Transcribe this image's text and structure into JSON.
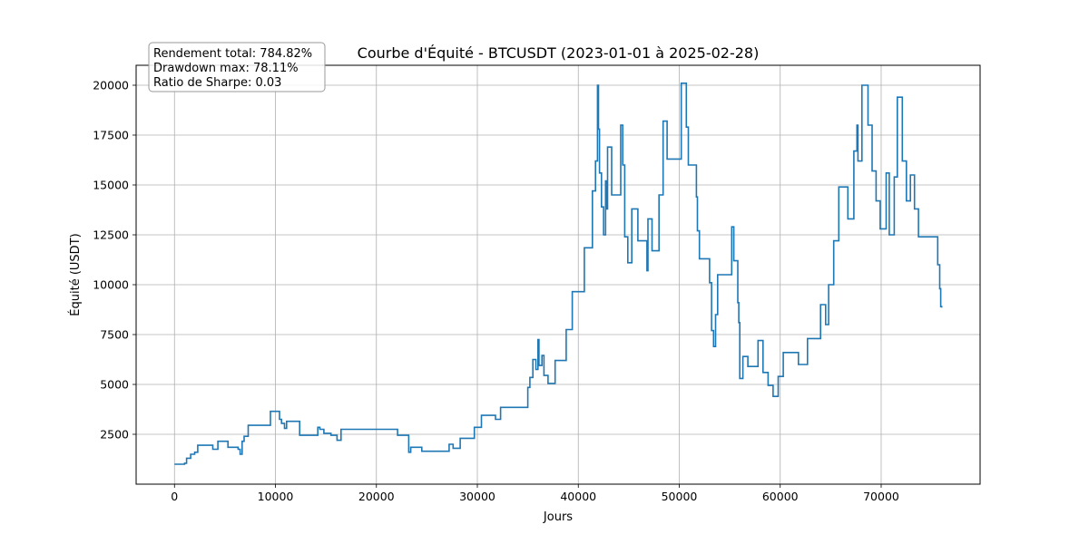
{
  "chart_data": {
    "type": "line",
    "title": "Courbe d'Équité - BTCUSDT (2023-01-01 à 2025-02-28)",
    "xlabel": "Jours",
    "ylabel": "Équité (USDT)",
    "xlim": [
      -3800,
      79800
    ],
    "ylim": [
      0,
      21000
    ],
    "xticks": [
      0,
      10000,
      20000,
      30000,
      40000,
      50000,
      60000,
      70000
    ],
    "yticks": [
      2500,
      5000,
      7500,
      10000,
      12500,
      15000,
      17500,
      20000
    ],
    "grid": true,
    "line_color": "#1f77b4",
    "stats_box": {
      "position": "top-left",
      "lines": [
        "Rendement total: 784.82%",
        "Drawdown max: 78.11%",
        "Ratio de Sharpe: 0.03"
      ]
    },
    "series": [
      {
        "step": true,
        "x": [
          0,
          1000,
          1200,
          1600,
          2000,
          2300,
          3800,
          4300,
          5300,
          6300,
          6500,
          6700,
          6900,
          7300,
          8300,
          9500,
          10400,
          10600,
          10900,
          11100,
          12400,
          14200,
          14400,
          14800,
          15500,
          16100,
          16500,
          20000,
          22100,
          23200,
          23400,
          24500,
          26500,
          27200,
          27600,
          28300,
          29700,
          30400,
          31800,
          32300,
          35000,
          35200,
          35500,
          35800,
          36000,
          36100,
          36400,
          36600,
          37000,
          37700,
          38800,
          39400,
          40600,
          41400,
          41700,
          41900,
          42000,
          42100,
          42300,
          42500,
          42700,
          42800,
          42900,
          43300,
          44200,
          44400,
          44600,
          44900,
          45300,
          45500,
          45900,
          46800,
          46900,
          47300,
          48000,
          48400,
          48800,
          49200,
          50200,
          50700,
          50900,
          51700,
          51800,
          52000,
          52500,
          53000,
          53200,
          53400,
          53600,
          53800,
          54400,
          55200,
          55400,
          55800,
          55900,
          56000,
          56300,
          56800,
          57800,
          58300,
          58800,
          59300,
          59800,
          60300,
          61800,
          62700,
          64000,
          64500,
          64800,
          65300,
          65800,
          66700,
          67300,
          67600,
          67700,
          68100,
          68700,
          69100,
          69500,
          69900,
          70500,
          70800,
          71300,
          71600,
          72100,
          72500,
          72900,
          73300,
          73700,
          75600,
          75800,
          75900,
          76000
        ],
        "values": [
          1000,
          1050,
          1300,
          1500,
          1600,
          1950,
          1750,
          2150,
          1850,
          1750,
          1500,
          2150,
          2400,
          2950,
          2950,
          3650,
          3250,
          3050,
          2800,
          3150,
          2450,
          2850,
          2750,
          2550,
          2450,
          2200,
          2750,
          2750,
          2450,
          1600,
          1850,
          1650,
          1650,
          2000,
          1800,
          2300,
          2850,
          3450,
          3250,
          3850,
          4850,
          5350,
          6250,
          5750,
          7250,
          5950,
          6450,
          5450,
          5050,
          6200,
          7750,
          9650,
          11850,
          14700,
          16200,
          20000,
          17800,
          15600,
          13900,
          12500,
          15200,
          13800,
          16900,
          14500,
          18000,
          16000,
          12400,
          11100,
          13800,
          13800,
          12200,
          10700,
          13300,
          11700,
          14500,
          18200,
          16300,
          16300,
          20100,
          17900,
          16000,
          14400,
          12700,
          11300,
          11300,
          10100,
          7700,
          6900,
          8500,
          10500,
          10500,
          12900,
          11200,
          9100,
          8100,
          5300,
          6400,
          5900,
          7200,
          5600,
          4950,
          4400,
          5400,
          6600,
          6000,
          7300,
          9000,
          8000,
          10000,
          12200,
          14900,
          13300,
          16700,
          18000,
          16200,
          20000,
          18000,
          15700,
          14200,
          12800,
          15600,
          12500,
          15400,
          19400,
          16200,
          14200,
          15500,
          13800,
          12400,
          11000,
          9800,
          8900,
          8850
        ]
      }
    ]
  }
}
